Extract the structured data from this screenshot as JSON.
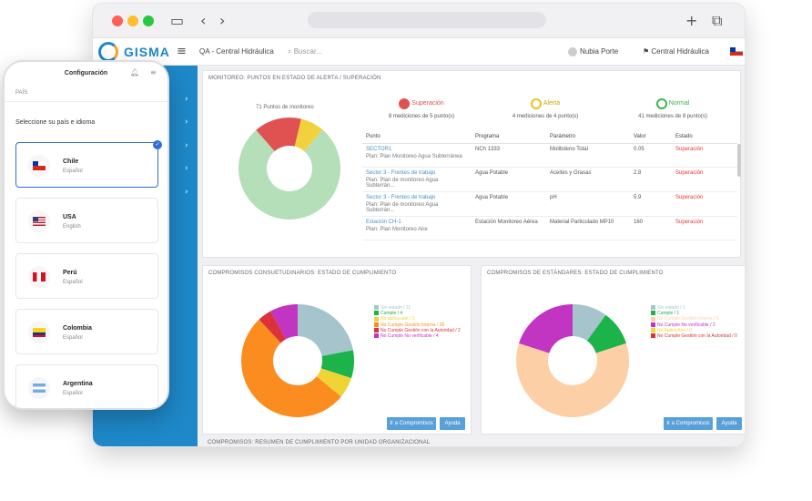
{
  "browser": {
    "app_name": "GISMA",
    "project": "QA - Central Hidráulica",
    "search_placeholder": "Buscar...",
    "user_name": "Nubia Porte",
    "site_name": "Central Hidráulica"
  },
  "monitoreo": {
    "title": "MONITOREO: PUNTOS EN ESTADO DE ALERTA / SUPERACIÓN",
    "total_label": "71 Puntos de monitoreo",
    "chart_data": {
      "type": "pie",
      "labels": [
        "Superación",
        "Alerta",
        "Normal"
      ],
      "values": [
        8,
        4,
        41
      ],
      "colors": [
        "#e05252",
        "#f2d23c",
        "#b5dfb8"
      ]
    },
    "status": [
      {
        "label": "Superación",
        "sub": "8 mediciones de 5 punto(s)",
        "color": "#e05252"
      },
      {
        "label": "Alerta",
        "sub": "4 mediciones de 4 punto(s)",
        "color": "#e8c220"
      },
      {
        "label": "Normal",
        "sub": "41 mediciones de 8 punto(s)",
        "color": "#3fb34f"
      }
    ],
    "columns": [
      "Punto",
      "Programa",
      "Parámetro",
      "Valor",
      "Estado"
    ],
    "rows": [
      {
        "point": "SECTOR1",
        "plan": "Plan: Plan Monitoreo Agua Subterránea",
        "program": "NCh 1333",
        "parameter": "Molibdeno Total",
        "value": "0.05",
        "state": "Superación"
      },
      {
        "point": "Sector 3 - Frentes de trabajo",
        "plan": "Plan: Plan de monitoreo Agua Subterrán...",
        "program": "Agua Potable",
        "parameter": "Aceites y Grasas",
        "value": "2.8",
        "state": "Superación"
      },
      {
        "point": "Sector 3 - Frentes de trabajo",
        "plan": "Plan: Plan de monitoreo Agua Subterrán...",
        "program": "Agua Potable",
        "parameter": "pH",
        "value": "5.9",
        "state": "Superación"
      },
      {
        "point": "Estación CH-1",
        "plan": "Plan: Plan Monitoreo Aire",
        "program": "Estación Monitoreo Aérea",
        "parameter": "Material Particulado MP10",
        "value": "160",
        "state": "Superación"
      }
    ]
  },
  "consuetudinarios": {
    "title": "COMPROMISOS CONSUETUDINARIOS: ESTADO DE CUMPLIMIENTO",
    "chart_data": {
      "type": "pie",
      "labels": [
        "Sin estado / 11",
        "Cumple / 4",
        "No aplica aún / 3",
        "No Cumple Gestión Interna / 26",
        "No Cumple Gestión con la Autoridad / 2",
        "No Cumple No verificable / 4"
      ],
      "values": [
        11,
        4,
        3,
        26,
        2,
        4
      ],
      "colors": [
        "#a6c4cc",
        "#1bb34a",
        "#f0d435",
        "#fb8c1f",
        "#d9323a",
        "#c234c2"
      ]
    },
    "btn_compromisos": "Ir a Compromisos",
    "btn_ayuda": "Ayuda"
  },
  "estandares": {
    "title": "COMPROMISOS DE ESTÁNDARES: ESTADO DE CUMPLIMIENTO",
    "chart_data": {
      "type": "pie",
      "labels": [
        "Sin estado / 1",
        "Cumple / 1",
        "No Cumple Gestión Interna / 6",
        "No Cumple No verificable / 2",
        "No Aplica Aún / 0",
        "No Cumple Gestión con la Autoridad / 0"
      ],
      "values": [
        1,
        1,
        6,
        2,
        0,
        0
      ],
      "colors": [
        "#a6c4cc",
        "#1bb34a",
        "#fdcfa6",
        "#c234c2",
        "#f0d435",
        "#d9323a"
      ]
    },
    "btn_compromisos": "Ir a Compromisos",
    "btn_ayuda": "Ayuda"
  },
  "resumen_title": "COMPROMISOS: RESUMEN DE CUMPLIMIENTO POR UNIDAD ORGANIZACIONAL",
  "phone": {
    "title": "Configuración",
    "section": "PAÍS",
    "instruction": "Seleccione su país e idioma",
    "countries": [
      {
        "name": "Chile",
        "language": "Español"
      },
      {
        "name": "USA",
        "language": "English"
      },
      {
        "name": "Perú",
        "language": "Español"
      },
      {
        "name": "Colombia",
        "language": "Español"
      },
      {
        "name": "Argentina",
        "language": "Español"
      }
    ]
  }
}
